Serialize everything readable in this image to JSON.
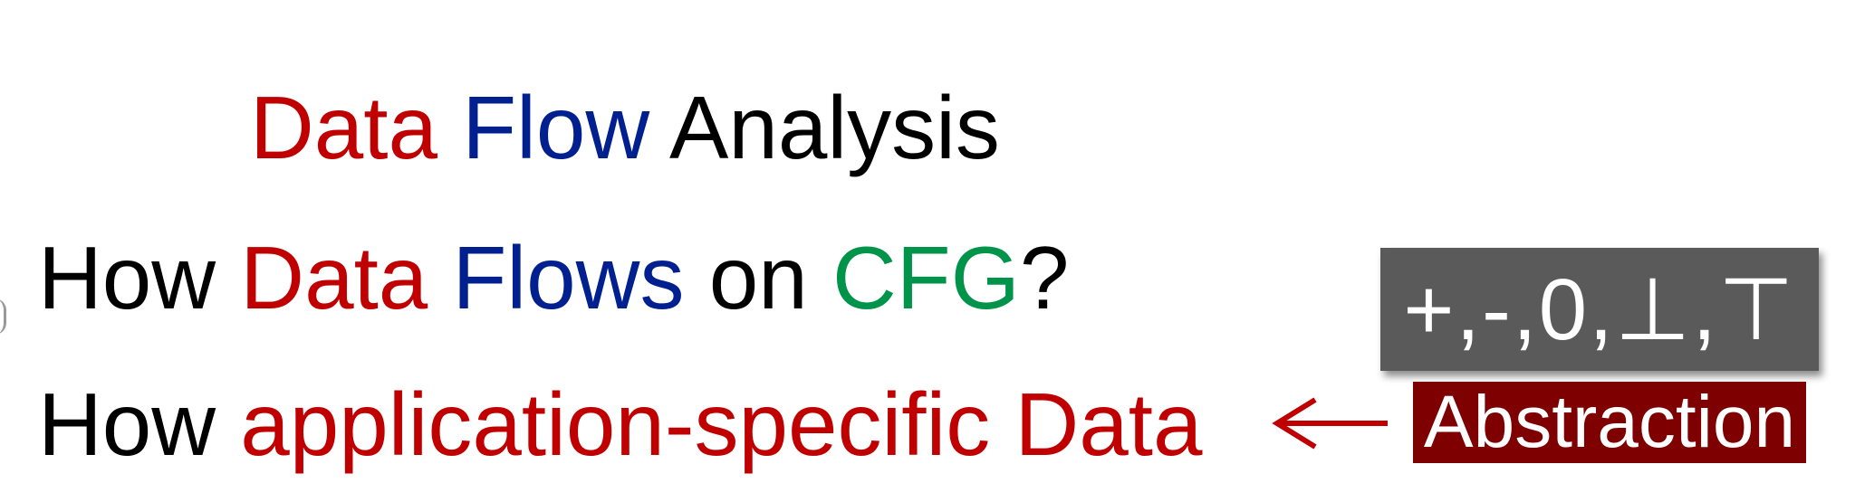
{
  "title": {
    "word1": "Data",
    "word2": "Flow",
    "word3": "Analysis"
  },
  "line2": {
    "w1": "How",
    "w2": "Data",
    "w3": "Flows",
    "w4": "on",
    "w5": "CFG",
    "w6": "?"
  },
  "line3": {
    "w1": "How",
    "w2": "application-specific Data"
  },
  "lattice": "+,-,0,⊥,⊤",
  "abstraction": "Abstraction",
  "colors": {
    "red": "#c00000",
    "blue": "#002090",
    "green": "#00934a",
    "lattice_box": "#5a5a5a",
    "abstraction_box": "#7e0000"
  },
  "icons": {
    "arrow": "left-arrow-icon"
  }
}
